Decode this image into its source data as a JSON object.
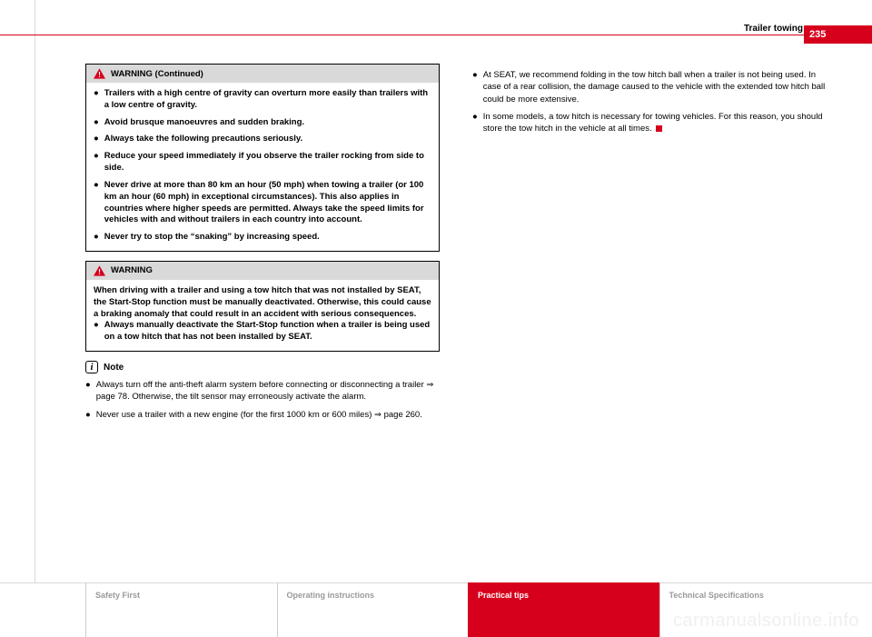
{
  "page": {
    "number": "235",
    "section": "Trailer towing",
    "accent_color": "#d6001c",
    "watermark": "carmanualsonline.info"
  },
  "left": {
    "box1": {
      "header": "WARNING (Continued)",
      "bullets": [
        "Trailers with a high centre of gravity can overturn more easily than trailers with a low centre of gravity.",
        "Avoid brusque manoeuvres and sudden braking.",
        "Always take the following precautions seriously.",
        "Reduce your speed immediately if you observe the trailer rocking from side to side.",
        "Never drive at more than 80 km an hour (50 mph) when towing a trailer (or 100 km an hour (60 mph) in exceptional circumstances). This also applies in countries where higher speeds are permitted. Always take the speed limits for vehicles with and without trailers in each country into account.",
        "Never try to stop the “snaking” by increasing speed."
      ]
    },
    "box2": {
      "header": "WARNING",
      "intro": "When driving with a trailer and using a tow hitch that was not installed by SEAT, the Start-Stop function must be manually deactivated. Otherwise, this could cause a braking anomaly that could result in an accident with serious consequences.",
      "bullets": [
        "Always manually deactivate the Start-Stop function when a trailer is being used on a tow hitch that has not been installed by SEAT."
      ]
    },
    "note": {
      "header": "Note",
      "bullets": [
        "Always turn off the anti-theft alarm system before connecting or disconnecting a trailer ⇒ page 78. Otherwise, the tilt sensor may erroneously activate the alarm.",
        "Never use a trailer with a new engine (for the first 1000 km or 600 miles) ⇒ page 260."
      ]
    }
  },
  "right": {
    "bullets": [
      "At SEAT, we recommend folding in the tow hitch ball when a trailer is not being used. In case of a rear collision, the damage caused to the vehicle with the extended tow hitch ball could be more extensive.",
      "In some models, a tow hitch is necessary for towing vehicles. For this reason, you should store the tow hitch in the vehicle at all times."
    ]
  },
  "footer": {
    "tabs": [
      "Safety First",
      "Operating instructions",
      "Practical tips",
      "Technical Specifications"
    ],
    "active_index": 2
  }
}
